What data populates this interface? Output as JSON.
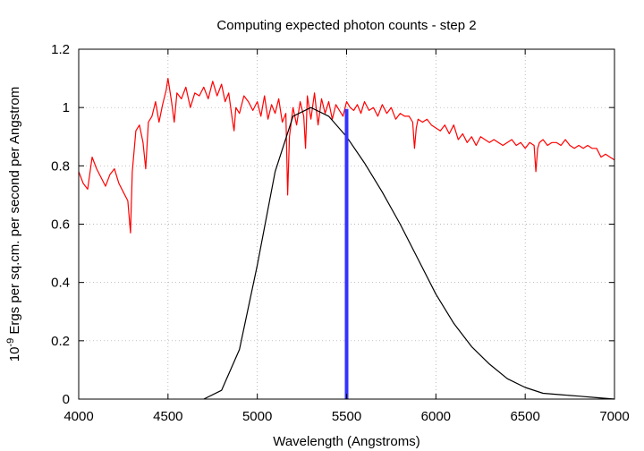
{
  "chart_data": {
    "type": "line",
    "title": "Computing expected photon counts - step 2",
    "xlabel": "Wavelength (Angstroms)",
    "ylabel_prefix": "10",
    "ylabel_exponent": "-9",
    "ylabel_rest": " Ergs per sq.cm. per second per Angstrom",
    "xlim": [
      4000,
      7000
    ],
    "ylim": [
      0,
      1.2
    ],
    "xticks": [
      4000,
      4500,
      5000,
      5500,
      6000,
      6500,
      7000
    ],
    "xtick_labels": [
      "4000",
      "4500",
      "5000",
      "5500",
      "6000",
      "6500",
      "7000"
    ],
    "yticks": [
      0,
      0.2,
      0.4,
      0.6,
      0.8,
      1.0,
      1.2
    ],
    "ytick_labels": [
      "0",
      "0.2",
      "0.4",
      "0.6",
      "0.8",
      "1",
      "1.2"
    ],
    "grid": true,
    "legend": "none",
    "series": [
      {
        "color": "#ff0000",
        "x": [
          4000,
          4025,
          4050,
          4075,
          4100,
          4125,
          4150,
          4175,
          4200,
          4225,
          4250,
          4275,
          4290,
          4300,
          4320,
          4340,
          4360,
          4375,
          4390,
          4410,
          4430,
          4450,
          4470,
          4490,
          4500,
          4520,
          4535,
          4550,
          4575,
          4600,
          4625,
          4650,
          4675,
          4700,
          4725,
          4750,
          4775,
          4800,
          4820,
          4840,
          4860,
          4870,
          4880,
          4900,
          4925,
          4950,
          4975,
          5000,
          5020,
          5040,
          5060,
          5080,
          5100,
          5120,
          5140,
          5160,
          5170,
          5180,
          5200,
          5220,
          5240,
          5260,
          5270,
          5280,
          5300,
          5320,
          5340,
          5360,
          5380,
          5400,
          5420,
          5440,
          5460,
          5480,
          5500,
          5520,
          5540,
          5560,
          5580,
          5600,
          5625,
          5650,
          5675,
          5700,
          5725,
          5750,
          5775,
          5800,
          5825,
          5850,
          5870,
          5880,
          5890,
          5900,
          5925,
          5950,
          5975,
          6000,
          6025,
          6050,
          6075,
          6100,
          6125,
          6150,
          6175,
          6200,
          6225,
          6250,
          6275,
          6300,
          6325,
          6350,
          6375,
          6400,
          6425,
          6450,
          6475,
          6500,
          6525,
          6550,
          6560,
          6570,
          6580,
          6600,
          6625,
          6650,
          6675,
          6700,
          6725,
          6750,
          6775,
          6800,
          6825,
          6850,
          6875,
          6900,
          6925,
          6950,
          6975,
          7000
        ],
        "y": [
          0.78,
          0.74,
          0.72,
          0.83,
          0.79,
          0.76,
          0.73,
          0.77,
          0.79,
          0.74,
          0.71,
          0.68,
          0.57,
          0.78,
          0.92,
          0.94,
          0.88,
          0.79,
          0.95,
          0.97,
          1.02,
          0.95,
          1.01,
          1.06,
          1.1,
          1.02,
          0.95,
          1.05,
          1.03,
          1.07,
          1.0,
          1.05,
          1.04,
          1.07,
          1.03,
          1.09,
          1.04,
          1.08,
          1.02,
          1.05,
          0.96,
          0.92,
          1.0,
          0.98,
          1.04,
          1.02,
          0.99,
          1.02,
          0.97,
          1.04,
          0.96,
          1.01,
          0.98,
          1.03,
          0.95,
          0.98,
          0.7,
          0.9,
          1.0,
          0.94,
          1.02,
          0.97,
          0.86,
          1.04,
          0.96,
          1.05,
          0.94,
          1.03,
          0.98,
          1.02,
          0.96,
          1.01,
          0.99,
          0.97,
          1.02,
          1.0,
          0.99,
          1.01,
          0.98,
          1.02,
          0.99,
          1.0,
          0.97,
          1.01,
          0.98,
          1.0,
          0.96,
          0.98,
          0.97,
          0.97,
          0.95,
          0.86,
          0.93,
          0.96,
          0.95,
          0.96,
          0.94,
          0.93,
          0.92,
          0.94,
          0.91,
          0.94,
          0.89,
          0.91,
          0.88,
          0.9,
          0.87,
          0.9,
          0.89,
          0.88,
          0.89,
          0.88,
          0.87,
          0.88,
          0.89,
          0.87,
          0.88,
          0.86,
          0.88,
          0.87,
          0.78,
          0.86,
          0.88,
          0.89,
          0.87,
          0.88,
          0.88,
          0.87,
          0.89,
          0.87,
          0.86,
          0.87,
          0.86,
          0.87,
          0.86,
          0.86,
          0.83,
          0.84,
          0.83,
          0.82
        ]
      },
      {
        "color": "#000000",
        "x": [
          4700,
          4800,
          4900,
          5000,
          5100,
          5200,
          5300,
          5400,
          5500,
          5600,
          5700,
          5800,
          5900,
          6000,
          6100,
          6200,
          6300,
          6400,
          6500,
          6600,
          6700,
          6800,
          6900,
          7000
        ],
        "y": [
          0.0,
          0.03,
          0.17,
          0.46,
          0.78,
          0.97,
          1.0,
          0.97,
          0.9,
          0.81,
          0.71,
          0.6,
          0.48,
          0.36,
          0.26,
          0.18,
          0.12,
          0.07,
          0.04,
          0.02,
          0.015,
          0.01,
          0.005,
          0.0
        ]
      }
    ],
    "markers": [
      {
        "color": "#3333ff",
        "x": 5500,
        "y_from": 0,
        "y_to": 0.995
      }
    ]
  }
}
